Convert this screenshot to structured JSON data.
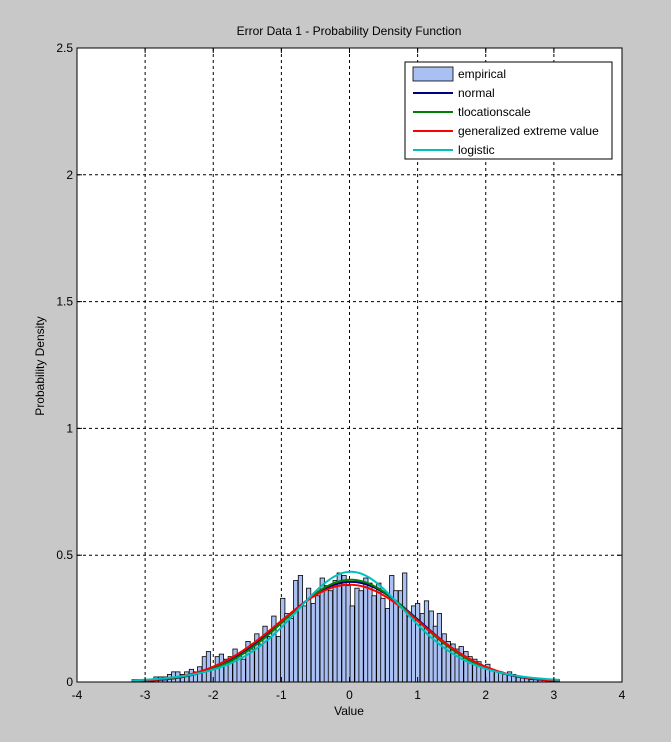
{
  "chart_data": {
    "type": "bar",
    "title": "Error Data 1 - Probability Density Function",
    "xlabel": "Value",
    "ylabel": "Probability Density",
    "xlim": [
      -4,
      4
    ],
    "ylim": [
      0,
      2.5
    ],
    "xticks": [
      "-4",
      "-3",
      "-2",
      "-1",
      "0",
      "1",
      "2",
      "3",
      "4"
    ],
    "yticks": [
      "0",
      "0.5",
      "1",
      "1.5",
      "2",
      "2.5"
    ],
    "grid": true,
    "legend_position": "top-right",
    "histogram": {
      "name": "empirical",
      "bin_width": 0.064,
      "x": [
        -3.16,
        -3.09,
        -3.03,
        -2.96,
        -2.9,
        -2.84,
        -2.77,
        -2.71,
        -2.64,
        -2.58,
        -2.52,
        -2.45,
        -2.39,
        -2.32,
        -2.26,
        -2.2,
        -2.13,
        -2.07,
        -2.0,
        -1.94,
        -1.88,
        -1.81,
        -1.75,
        -1.68,
        -1.62,
        -1.56,
        -1.49,
        -1.43,
        -1.36,
        -1.3,
        -1.24,
        -1.17,
        -1.11,
        -1.04,
        -0.98,
        -0.92,
        -0.85,
        -0.79,
        -0.72,
        -0.66,
        -0.6,
        -0.53,
        -0.47,
        -0.4,
        -0.34,
        -0.28,
        -0.21,
        -0.15,
        -0.08,
        -0.02,
        0.04,
        0.11,
        0.17,
        0.24,
        0.3,
        0.36,
        0.43,
        0.49,
        0.56,
        0.62,
        0.68,
        0.75,
        0.81,
        0.88,
        0.94,
        1.0,
        1.07,
        1.13,
        1.2,
        1.26,
        1.32,
        1.39,
        1.45,
        1.52,
        1.58,
        1.64,
        1.71,
        1.77,
        1.84,
        1.9,
        1.96,
        2.03,
        2.09,
        2.16,
        2.22,
        2.28,
        2.35,
        2.41,
        2.48,
        2.54,
        2.6,
        2.67,
        2.73,
        2.8,
        2.86,
        2.92,
        2.99,
        3.05
      ],
      "values": [
        0.01,
        0.01,
        0.01,
        0.01,
        0.01,
        0.02,
        0.02,
        0.02,
        0.03,
        0.04,
        0.04,
        0.03,
        0.04,
        0.05,
        0.04,
        0.06,
        0.1,
        0.12,
        0.06,
        0.1,
        0.11,
        0.09,
        0.1,
        0.13,
        0.11,
        0.09,
        0.16,
        0.13,
        0.19,
        0.15,
        0.22,
        0.18,
        0.26,
        0.18,
        0.33,
        0.27,
        0.25,
        0.4,
        0.42,
        0.3,
        0.37,
        0.31,
        0.34,
        0.41,
        0.38,
        0.36,
        0.4,
        0.43,
        0.42,
        0.38,
        0.3,
        0.37,
        0.36,
        0.41,
        0.39,
        0.34,
        0.39,
        0.33,
        0.29,
        0.42,
        0.36,
        0.36,
        0.43,
        0.26,
        0.3,
        0.31,
        0.27,
        0.32,
        0.28,
        0.22,
        0.27,
        0.19,
        0.16,
        0.15,
        0.13,
        0.14,
        0.12,
        0.1,
        0.09,
        0.08,
        0.06,
        0.07,
        0.05,
        0.04,
        0.04,
        0.03,
        0.04,
        0.03,
        0.02,
        0.02,
        0.02,
        0.01,
        0.01,
        0.01,
        0.01,
        0.01,
        0.01,
        0.01
      ]
    },
    "series": [
      {
        "name": "normal",
        "color": "#00007f",
        "dist": "normal",
        "params": {
          "mu": 0.02,
          "sigma": 1.01
        }
      },
      {
        "name": "tlocationscale",
        "color": "#007f00",
        "dist": "tlocationscale",
        "params": {
          "mu": 0.02,
          "sigma": 0.98,
          "nu": 25
        }
      },
      {
        "name": "generalized extreme value",
        "color": "#ff0000",
        "dist": "normal",
        "params": {
          "mu": 0.0,
          "sigma": 1.04
        }
      },
      {
        "name": "logistic",
        "color": "#00bfbf",
        "dist": "logistic",
        "params": {
          "mu": 0.02,
          "s": 0.575
        }
      }
    ],
    "legend": [
      "empirical",
      "normal",
      "tlocationscale",
      "generalized extreme value",
      "logistic"
    ],
    "bar_color": "#aabff2"
  }
}
